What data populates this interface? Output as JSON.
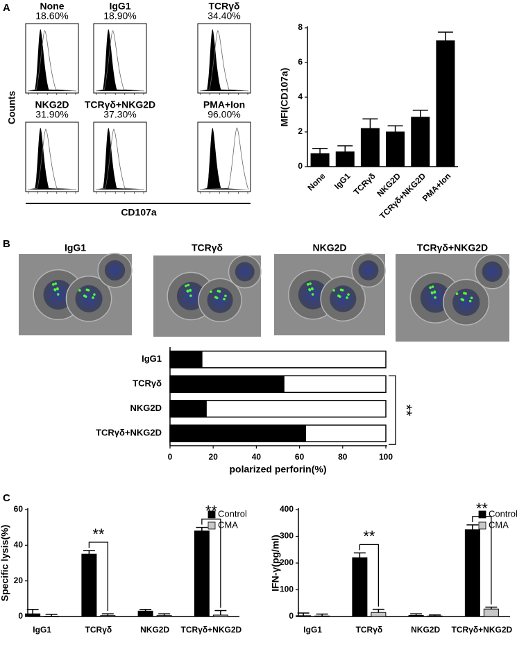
{
  "panel_labels": [
    "A",
    "B",
    "C"
  ],
  "flow": {
    "y_label": "Counts",
    "x_label": "CD107a",
    "plots": [
      {
        "title": "None",
        "percent": "18.60%"
      },
      {
        "title": "IgG1",
        "percent": "18.90%"
      },
      {
        "title": "TCRγδ",
        "percent": "34.40%"
      },
      {
        "title": "NKG2D",
        "percent": "31.90%"
      },
      {
        "title": "TCRγδ+NKG2D",
        "percent": "37.30%"
      },
      {
        "title": "PMA+Ion",
        "percent": "96.00%"
      }
    ]
  },
  "images": {
    "labels": [
      "IgG1",
      "TCRγδ",
      "NKG2D",
      "TCRγδ+NKG2D"
    ]
  },
  "chart_data": [
    {
      "type": "bar",
      "ylabel": "MFI(CD107a)",
      "categories": [
        "None",
        "IgG1",
        "TCRγδ",
        "NKG2D",
        "TCRγδ+NKG2D",
        "PMA+Ion"
      ],
      "values": [
        0.75,
        0.85,
        2.2,
        2.0,
        2.85,
        7.25
      ],
      "errors": [
        0.3,
        0.35,
        0.55,
        0.35,
        0.4,
        0.5
      ],
      "color": "#000000",
      "ylim": [
        0,
        8
      ],
      "yticks": [
        0,
        2,
        4,
        6,
        8
      ]
    },
    {
      "type": "barh",
      "xlabel": "polarized perforin(%)",
      "categories": [
        "IgG1",
        "TCRγδ",
        "NKG2D",
        "TCRγδ+NKG2D"
      ],
      "values": [
        15,
        53,
        17,
        63
      ],
      "color": "#000000",
      "xlim": [
        0,
        100
      ],
      "xticks": [
        0,
        20,
        40,
        60,
        80,
        100
      ],
      "annotations": [
        {
          "text": "**",
          "from": "TCRγδ",
          "to": "TCRγδ+NKG2D"
        }
      ]
    },
    {
      "type": "bar",
      "ylabel": "Specific lysis(%)",
      "categories": [
        "IgG1",
        "TCRγδ",
        "NKG2D",
        "TCRγδ+NKG2D"
      ],
      "series": [
        {
          "name": "Control",
          "color": "#000000",
          "values": [
            1.5,
            35,
            3,
            48
          ],
          "errors": [
            2.5,
            2,
            1,
            2
          ]
        },
        {
          "name": "CMA",
          "color": "#c8c8c8",
          "values": [
            0.2,
            0.5,
            0.5,
            0.8
          ],
          "errors": [
            1,
            1,
            1,
            2.5
          ]
        }
      ],
      "ylim": [
        0,
        60
      ],
      "yticks": [
        0,
        20,
        40,
        60
      ],
      "legend": "upper right",
      "annotations": [
        {
          "text": "**",
          "category": "TCRγδ"
        },
        {
          "text": "**",
          "category": "TCRγδ+NKG2D"
        }
      ]
    },
    {
      "type": "bar",
      "ylabel": "IFN-γ(pg/ml)",
      "categories": [
        "IgG1",
        "TCRγδ",
        "NKG2D",
        "TCRγδ+NKG2D"
      ],
      "series": [
        {
          "name": "Control",
          "color": "#000000",
          "values": [
            3,
            220,
            4,
            325
          ],
          "errors": [
            10,
            18,
            6,
            18
          ]
        },
        {
          "name": "CMA",
          "color": "#c8c8c8",
          "values": [
            2,
            15,
            2,
            28
          ],
          "errors": [
            7,
            12,
            4,
            7
          ]
        }
      ],
      "ylim": [
        0,
        400
      ],
      "yticks": [
        0,
        100,
        200,
        300,
        400
      ],
      "legend": "upper right",
      "annotations": [
        {
          "text": "**",
          "category": "TCRγδ"
        },
        {
          "text": "**",
          "category": "TCRγδ+NKG2D"
        }
      ]
    }
  ]
}
